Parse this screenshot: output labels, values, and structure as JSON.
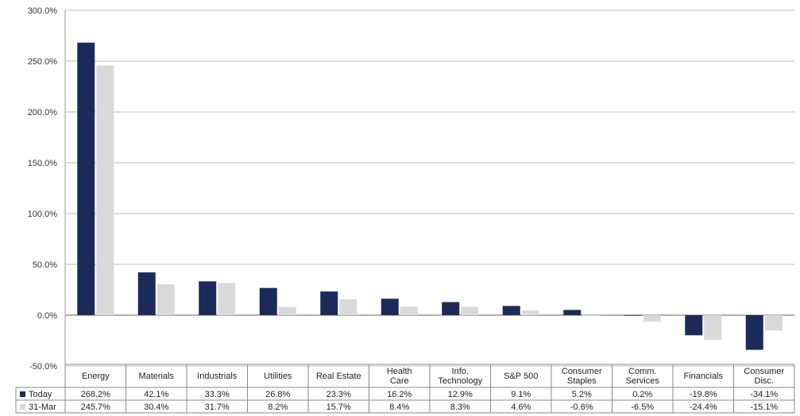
{
  "chart_data": {
    "type": "bar",
    "title": "",
    "xlabel": "",
    "ylabel": "",
    "ylim": [
      -50,
      300
    ],
    "yticks": [
      -50,
      0,
      50,
      100,
      150,
      200,
      250,
      300
    ],
    "ytick_labels": [
      "-50.0%",
      "0.0%",
      "50.0%",
      "100.0%",
      "150.0%",
      "200.0%",
      "250.0%",
      "300.0%"
    ],
    "grid": true,
    "categories": [
      [
        "Energy"
      ],
      [
        "Materials"
      ],
      [
        "Industrials"
      ],
      [
        "Utilities"
      ],
      [
        "Real Estate"
      ],
      [
        "Health",
        "Care"
      ],
      [
        "Info.",
        "Technology"
      ],
      [
        "S&P 500"
      ],
      [
        "Consumer",
        "Staples"
      ],
      [
        "Comm.",
        "Services"
      ],
      [
        "Financials"
      ],
      [
        "Consumer",
        "Disc."
      ]
    ],
    "series": [
      {
        "name": "Today",
        "color": "#1c2a5a",
        "values": [
          268.2,
          42.1,
          33.3,
          26.8,
          23.3,
          16.2,
          12.9,
          9.1,
          5.2,
          0.2,
          -19.8,
          -34.1
        ],
        "labels": [
          "268.2%",
          "42.1%",
          "33.3%",
          "26.8%",
          "23.3%",
          "16.2%",
          "12.9%",
          "9.1%",
          "5.2%",
          "0.2%",
          "-19.8%",
          "-34.1%"
        ]
      },
      {
        "name": "31-Mar",
        "color": "#d9d9d9",
        "values": [
          245.7,
          30.4,
          31.7,
          8.2,
          15.7,
          8.4,
          8.3,
          4.6,
          -0.6,
          -6.5,
          -24.4,
          -15.1
        ],
        "labels": [
          "245.7%",
          "30.4%",
          "31.7%",
          "8.2%",
          "15.7%",
          "8.4%",
          "8.3%",
          "4.6%",
          "-0.6%",
          "-6.5%",
          "-24.4%",
          "-15.1%"
        ]
      }
    ],
    "legend": "data-table-left"
  }
}
